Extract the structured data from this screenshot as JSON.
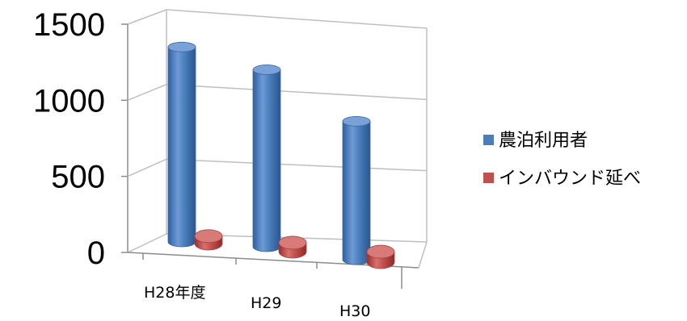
{
  "chart_data": {
    "type": "bar",
    "style": "3d-cylinder",
    "categories": [
      "H28年度",
      "H29",
      "H30"
    ],
    "series": [
      {
        "name": "農泊利用者",
        "color": "#4A7EBB",
        "values": [
          1310,
          1190,
          930
        ]
      },
      {
        "name": "インバウンド延べ",
        "color": "#C0504D",
        "values": [
          50,
          60,
          70
        ]
      }
    ],
    "yticks": [
      0,
      500,
      1000,
      1500
    ],
    "ylim": [
      0,
      1500
    ],
    "grid": true,
    "legend_position": "right"
  }
}
